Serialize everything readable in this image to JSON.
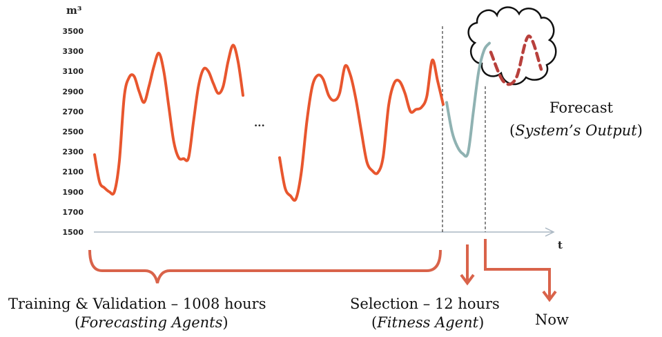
{
  "chart_data": {
    "type": "line",
    "ylabel": "m³",
    "xlabel": "t",
    "ylim": [
      1500,
      3500
    ],
    "yticks": [
      1500,
      1700,
      1900,
      2100,
      2300,
      2500,
      2700,
      2900,
      3100,
      3300,
      3500
    ],
    "gap_marker": "...",
    "series": [
      {
        "role": "history-segment-1",
        "color": "#e8562e",
        "values": [
          2270,
          2000,
          1940,
          1900,
          1900,
          2200,
          2850,
          3040,
          3050,
          2900,
          2790,
          2950,
          3150,
          3280,
          3100,
          2750,
          2400,
          2240,
          2230,
          2240,
          2600,
          2950,
          3120,
          3100,
          2980,
          2880,
          2950,
          3200,
          3360,
          3200,
          2860
        ]
      },
      {
        "role": "history-segment-2",
        "color": "#e8562e",
        "values": [
          2240,
          1940,
          1860,
          1830,
          2100,
          2600,
          2950,
          3060,
          3020,
          2860,
          2810,
          2880,
          3150,
          3060,
          2820,
          2500,
          2200,
          2110,
          2090,
          2250,
          2760,
          2980,
          3000,
          2880,
          2700,
          2720,
          2740,
          2850,
          3210,
          3000,
          2770
        ]
      },
      {
        "role": "selection-window",
        "color": "#8fb2b2",
        "values": [
          2790,
          2500,
          2350,
          2280,
          2290,
          2700,
          3100,
          3310,
          3380
        ]
      },
      {
        "role": "forecast",
        "color": "#b8403c",
        "values": [
          3290,
          3000,
          3030,
          3450,
          3120
        ]
      }
    ]
  },
  "captions": {
    "training": "Training & Validation – 1008 hours",
    "training_sub_open": "(",
    "training_sub_it": "Forecasting Agents",
    "training_sub_close": ")",
    "selection": "Selection – 12 hours",
    "selection_sub_open": "(",
    "selection_sub_it": "Fitness Agent",
    "selection_sub_close": ")",
    "forecast": "Forecast",
    "forecast_sub_open": "(",
    "forecast_sub_it": "System’s Output",
    "forecast_sub_close": ")",
    "now": "Now"
  },
  "colors": {
    "history": "#e8562e",
    "selection": "#8fb2b2",
    "forecast": "#b8403c",
    "bracket": "#d9634a",
    "axis": "#a9b6c2"
  }
}
